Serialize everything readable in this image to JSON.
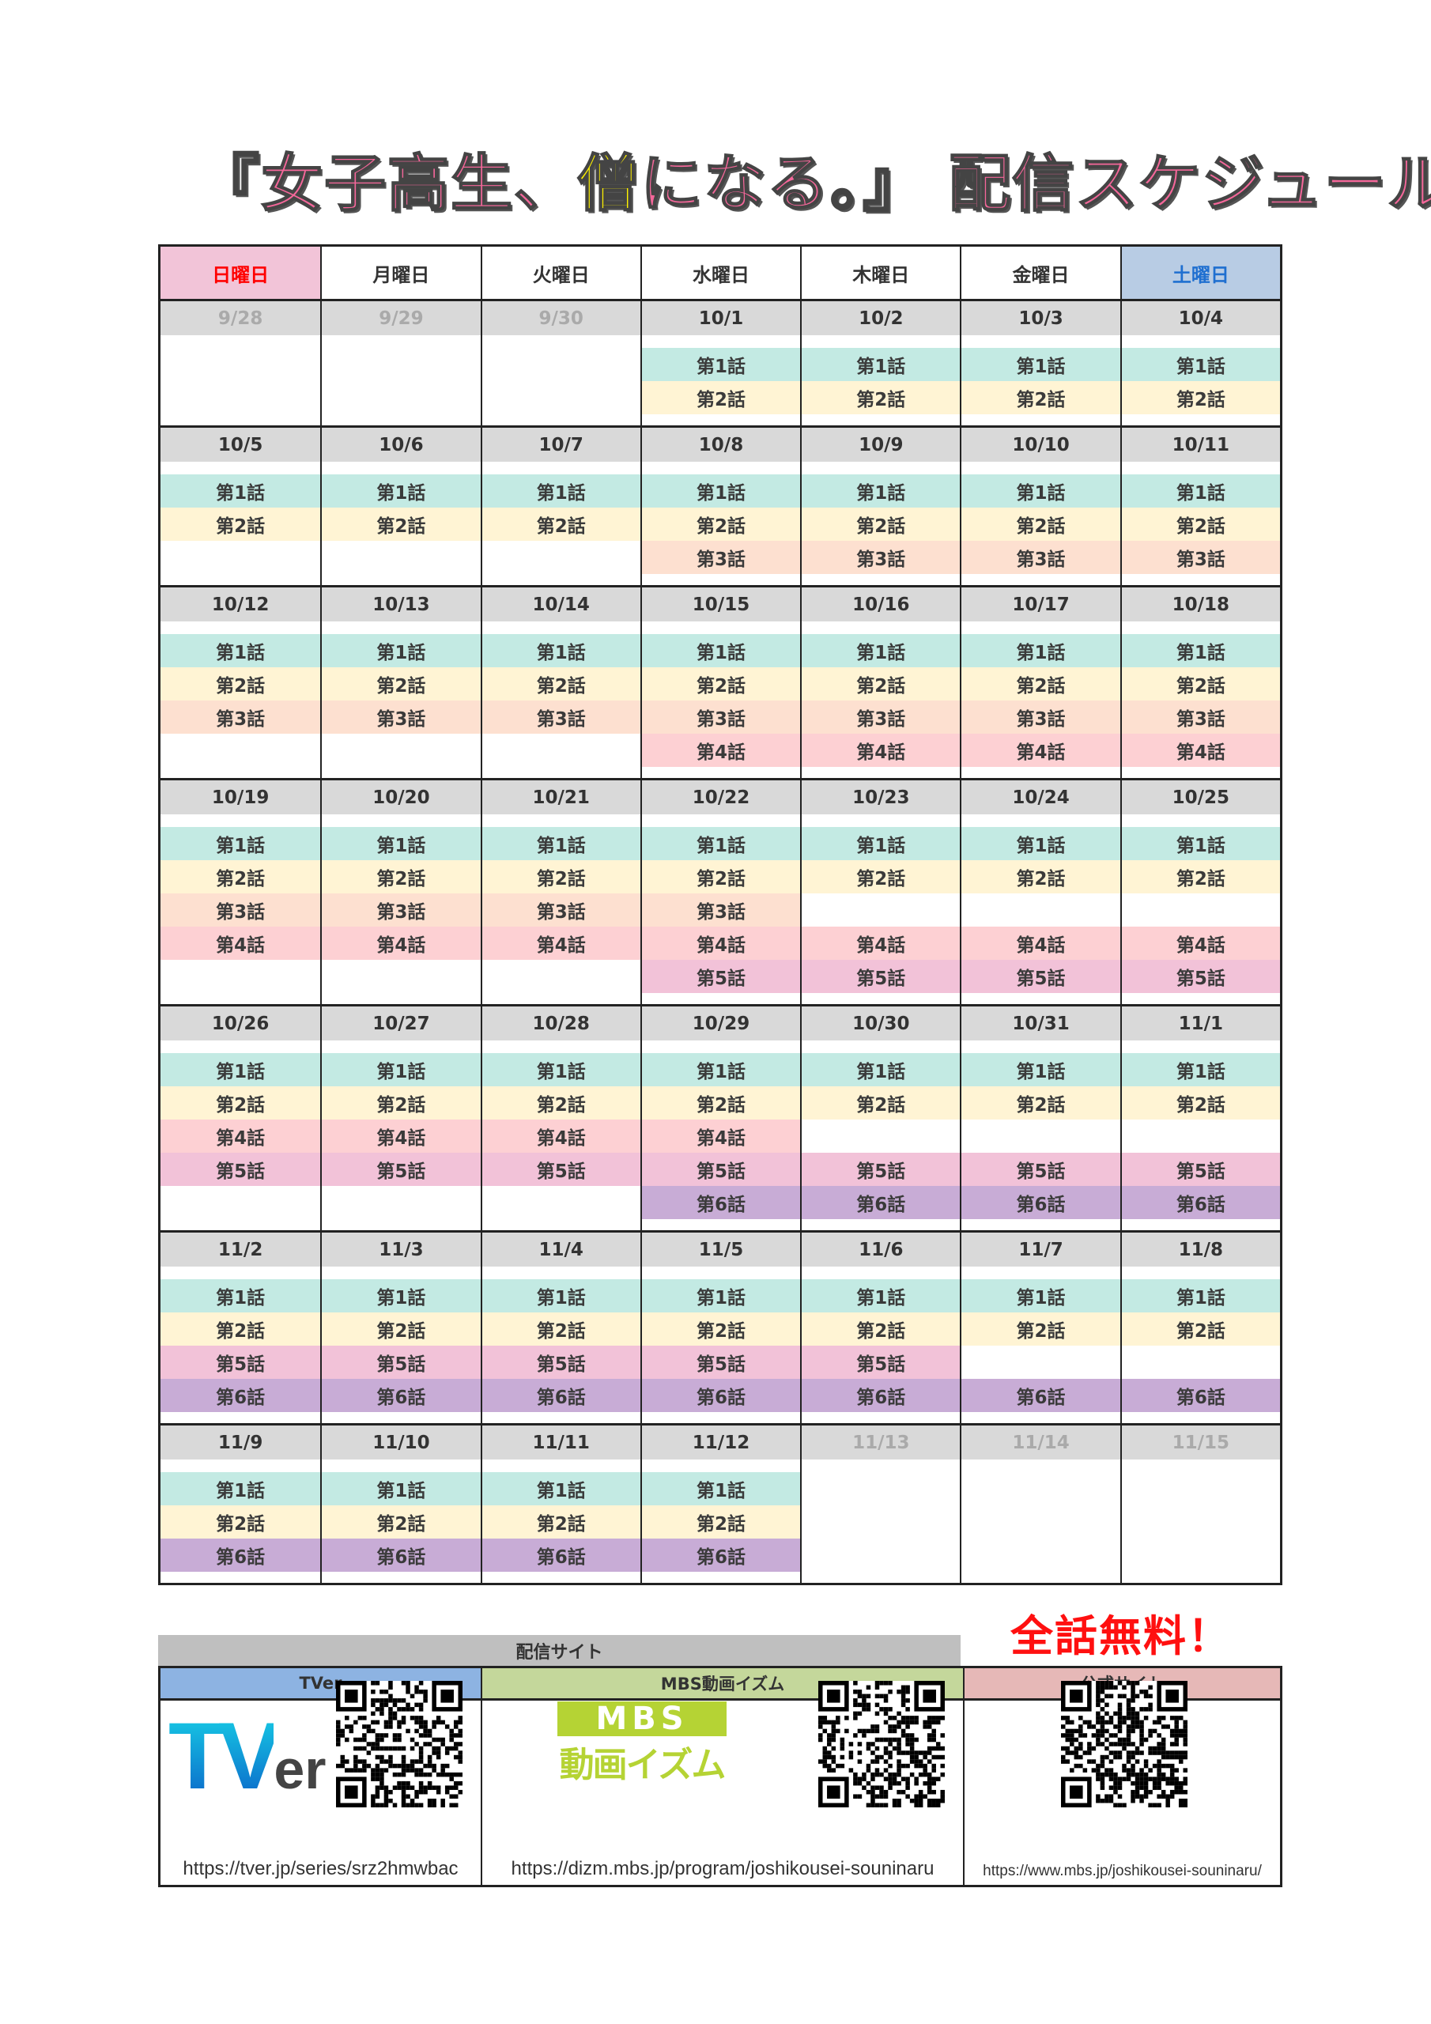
{
  "title": {
    "part1": "『女子高生、",
    "part2": "僧",
    "part3": "になる。』 配信スケジュール"
  },
  "weekdays": [
    {
      "label": "日曜日",
      "color": "#ff0000",
      "bg": "#f2c4d8"
    },
    {
      "label": "月曜日",
      "color": "#333333",
      "bg": "#ffffff"
    },
    {
      "label": "火曜日",
      "color": "#333333",
      "bg": "#ffffff"
    },
    {
      "label": "水曜日",
      "color": "#333333",
      "bg": "#ffffff"
    },
    {
      "label": "木曜日",
      "color": "#333333",
      "bg": "#ffffff"
    },
    {
      "label": "金曜日",
      "color": "#333333",
      "bg": "#ffffff"
    },
    {
      "label": "土曜日",
      "color": "#1f6fd0",
      "bg": "#b8cce4"
    }
  ],
  "episode_colors": {
    "1": "#c3eae3",
    "2": "#fff4d4",
    "3": "#fde0d0",
    "4": "#fdd0d3",
    "5": "#f2c2d8",
    "6": "#c8acd6"
  },
  "weeks": [
    {
      "days": [
        {
          "date": "9/28",
          "muted": true,
          "slots": [
            null,
            null
          ]
        },
        {
          "date": "9/29",
          "muted": true,
          "slots": [
            null,
            null
          ]
        },
        {
          "date": "9/30",
          "muted": true,
          "slots": [
            null,
            null
          ]
        },
        {
          "date": "10/1",
          "slots": [
            "第1話",
            "第2話"
          ]
        },
        {
          "date": "10/2",
          "slots": [
            "第1話",
            "第2話"
          ]
        },
        {
          "date": "10/3",
          "slots": [
            "第1話",
            "第2話"
          ]
        },
        {
          "date": "10/4",
          "slots": [
            "第1話",
            "第2話"
          ]
        }
      ]
    },
    {
      "days": [
        {
          "date": "10/5",
          "slots": [
            "第1話",
            "第2話",
            null
          ]
        },
        {
          "date": "10/6",
          "slots": [
            "第1話",
            "第2話",
            null
          ]
        },
        {
          "date": "10/7",
          "slots": [
            "第1話",
            "第2話",
            null
          ]
        },
        {
          "date": "10/8",
          "slots": [
            "第1話",
            "第2話",
            "第3話"
          ]
        },
        {
          "date": "10/9",
          "slots": [
            "第1話",
            "第2話",
            "第3話"
          ]
        },
        {
          "date": "10/10",
          "slots": [
            "第1話",
            "第2話",
            "第3話"
          ]
        },
        {
          "date": "10/11",
          "slots": [
            "第1話",
            "第2話",
            "第3話"
          ]
        }
      ]
    },
    {
      "days": [
        {
          "date": "10/12",
          "slots": [
            "第1話",
            "第2話",
            "第3話",
            null
          ]
        },
        {
          "date": "10/13",
          "slots": [
            "第1話",
            "第2話",
            "第3話",
            null
          ]
        },
        {
          "date": "10/14",
          "slots": [
            "第1話",
            "第2話",
            "第3話",
            null
          ]
        },
        {
          "date": "10/15",
          "slots": [
            "第1話",
            "第2話",
            "第3話",
            "第4話"
          ]
        },
        {
          "date": "10/16",
          "slots": [
            "第1話",
            "第2話",
            "第3話",
            "第4話"
          ]
        },
        {
          "date": "10/17",
          "slots": [
            "第1話",
            "第2話",
            "第3話",
            "第4話"
          ]
        },
        {
          "date": "10/18",
          "slots": [
            "第1話",
            "第2話",
            "第3話",
            "第4話"
          ]
        }
      ]
    },
    {
      "days": [
        {
          "date": "10/19",
          "slots": [
            "第1話",
            "第2話",
            "第3話",
            "第4話",
            null
          ]
        },
        {
          "date": "10/20",
          "slots": [
            "第1話",
            "第2話",
            "第3話",
            "第4話",
            null
          ]
        },
        {
          "date": "10/21",
          "slots": [
            "第1話",
            "第2話",
            "第3話",
            "第4話",
            null
          ]
        },
        {
          "date": "10/22",
          "slots": [
            "第1話",
            "第2話",
            "第3話",
            "第4話",
            "第5話"
          ]
        },
        {
          "date": "10/23",
          "slots": [
            "第1話",
            "第2話",
            null,
            "第4話",
            "第5話"
          ]
        },
        {
          "date": "10/24",
          "slots": [
            "第1話",
            "第2話",
            null,
            "第4話",
            "第5話"
          ]
        },
        {
          "date": "10/25",
          "slots": [
            "第1話",
            "第2話",
            null,
            "第4話",
            "第5話"
          ]
        }
      ]
    },
    {
      "days": [
        {
          "date": "10/26",
          "slots": [
            "第1話",
            "第2話",
            "第4話",
            "第5話",
            null
          ]
        },
        {
          "date": "10/27",
          "slots": [
            "第1話",
            "第2話",
            "第4話",
            "第5話",
            null
          ]
        },
        {
          "date": "10/28",
          "slots": [
            "第1話",
            "第2話",
            "第4話",
            "第5話",
            null
          ]
        },
        {
          "date": "10/29",
          "slots": [
            "第1話",
            "第2話",
            "第4話",
            "第5話",
            "第6話"
          ]
        },
        {
          "date": "10/30",
          "slots": [
            "第1話",
            "第2話",
            null,
            "第5話",
            "第6話"
          ]
        },
        {
          "date": "10/31",
          "slots": [
            "第1話",
            "第2話",
            null,
            "第5話",
            "第6話"
          ]
        },
        {
          "date": "11/1",
          "slots": [
            "第1話",
            "第2話",
            null,
            "第5話",
            "第6話"
          ]
        }
      ]
    },
    {
      "days": [
        {
          "date": "11/2",
          "slots": [
            "第1話",
            "第2話",
            "第5話",
            "第6話"
          ]
        },
        {
          "date": "11/3",
          "slots": [
            "第1話",
            "第2話",
            "第5話",
            "第6話"
          ]
        },
        {
          "date": "11/4",
          "slots": [
            "第1話",
            "第2話",
            "第5話",
            "第6話"
          ]
        },
        {
          "date": "11/5",
          "slots": [
            "第1話",
            "第2話",
            "第5話",
            "第6話"
          ]
        },
        {
          "date": "11/6",
          "slots": [
            "第1話",
            "第2話",
            "第5話",
            "第6話"
          ]
        },
        {
          "date": "11/7",
          "slots": [
            "第1話",
            "第2話",
            null,
            "第6話"
          ]
        },
        {
          "date": "11/8",
          "slots": [
            "第1話",
            "第2話",
            null,
            "第6話"
          ]
        }
      ]
    },
    {
      "days": [
        {
          "date": "11/9",
          "slots": [
            "第1話",
            "第2話",
            "第6話"
          ]
        },
        {
          "date": "11/10",
          "slots": [
            "第1話",
            "第2話",
            "第6話"
          ]
        },
        {
          "date": "11/11",
          "slots": [
            "第1話",
            "第2話",
            "第6話"
          ]
        },
        {
          "date": "11/12",
          "slots": [
            "第1話",
            "第2話",
            "第6話"
          ]
        },
        {
          "date": "11/13",
          "muted": true,
          "slots": [
            null,
            null,
            null
          ]
        },
        {
          "date": "11/14",
          "muted": true,
          "slots": [
            null,
            null,
            null
          ]
        },
        {
          "date": "11/15",
          "muted": true,
          "slots": [
            null,
            null,
            null
          ]
        }
      ]
    }
  ],
  "sites": {
    "header": "配信サイト",
    "free_note": "全話無料！",
    "tver": {
      "label": "TVer",
      "bg": "#8db3e2",
      "logo_text": "TVer",
      "url": "https://tver.jp/series/srz2hmwbac"
    },
    "mbs": {
      "label": "MBS動画イズム",
      "bg": "#c4d79b",
      "logo_top": "MBS",
      "logo_bottom": "動画イズム",
      "url": "https://dizm.mbs.jp/program/joshikousei-souninaru"
    },
    "official": {
      "label": "公式サイト",
      "bg": "#e6b8b7",
      "url": "https://www.mbs.jp/joshikousei-souninaru/"
    }
  }
}
